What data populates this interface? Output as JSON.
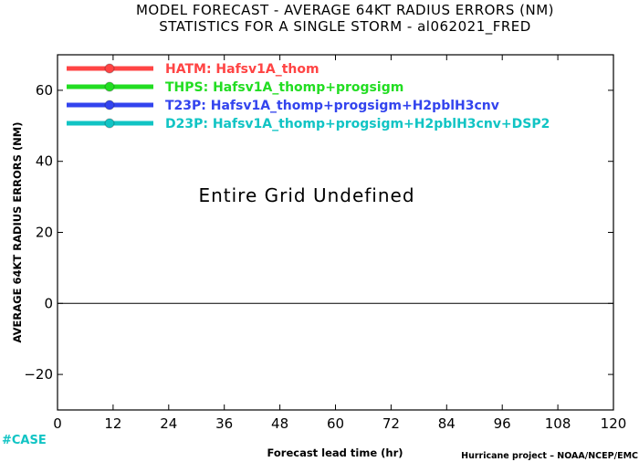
{
  "chart_data": {
    "type": "line",
    "title": "MODEL FORECAST - AVERAGE 64KT RADIUS ERRORS (NM)",
    "subtitle": "STATISTICS FOR A SINGLE STORM - al062021_FRED",
    "xlabel": "Forecast lead time (hr)",
    "ylabel": "AVERAGE 64KT RADIUS ERRORS (NM)",
    "xlim": [
      0,
      120
    ],
    "ylim": [
      -30,
      70
    ],
    "x_ticks": [
      0,
      12,
      24,
      36,
      48,
      60,
      72,
      84,
      96,
      108,
      120
    ],
    "y_ticks": [
      -20,
      0,
      20,
      40,
      60
    ],
    "y_tick_labels": [
      "−20",
      "0",
      "20",
      "40",
      "60"
    ],
    "reference_line_y": 0,
    "annotation": "Entire Grid Undefined",
    "legend_position": "top-left",
    "series": [
      {
        "name": "HATM: Hafsv1A_thom",
        "color": "#ff4444",
        "values": []
      },
      {
        "name": "THPS: Hafsv1A_thomp+progsigm",
        "color": "#22dd22",
        "values": []
      },
      {
        "name": "T23P: Hafsv1A_thomp+progsigm+H2pblH3cnv",
        "color": "#3344ee",
        "values": []
      },
      {
        "name": "D23P: Hafsv1A_thomp+progsigm+H2pblH3cnv+DSP2",
        "color": "#11c4c4",
        "values": []
      }
    ]
  },
  "footer": {
    "case_label": "#CASE",
    "case_color": "#11c4c4",
    "credit": "Hurricane project – NOAA/NCEP/EMC"
  }
}
